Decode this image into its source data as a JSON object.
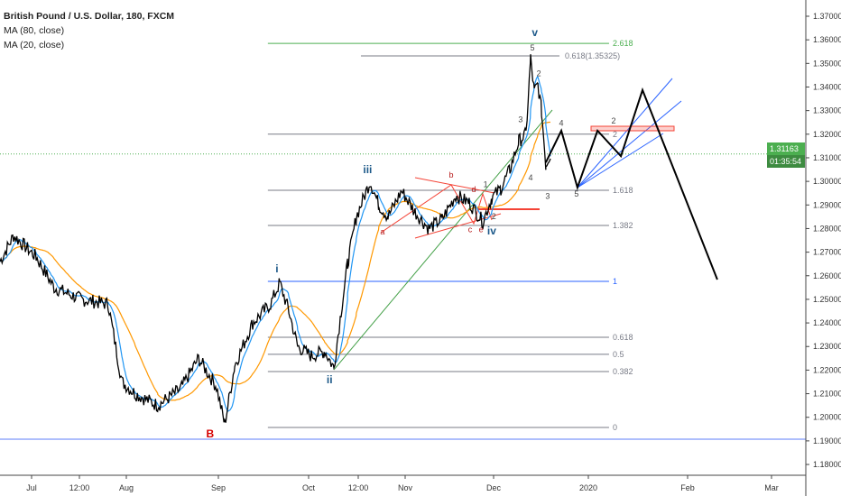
{
  "legend": {
    "title": "British Pound / U.S. Dollar, 180, FXCM",
    "ma_slow": "MA (80, close)",
    "ma_fast": "MA (20, close)"
  },
  "current": {
    "price": "1.31163",
    "countdown": "01:35:54",
    "color": "#4caf50"
  },
  "chart_data": {
    "type": "line",
    "title": "British Pound / U.S. Dollar, 180, FXCM",
    "x_unit": "days since Jul 1 2019",
    "y_ticks": [
      "1.37000",
      "1.36000",
      "1.35000",
      "1.34000",
      "1.33000",
      "1.32000",
      "1.31000",
      "1.30000",
      "1.29000",
      "1.28000",
      "1.27000",
      "1.26000",
      "1.25000",
      "1.24000",
      "1.23000",
      "1.22000",
      "1.21000",
      "1.20000",
      "1.19000",
      "1.18000"
    ],
    "ylim": [
      1.18,
      1.37
    ],
    "x_ticks": [
      "Jul",
      "12:00",
      "Aug",
      "Sep",
      "Oct",
      "12:00",
      "Nov",
      "Dec",
      "2020",
      "Feb",
      "Mar"
    ],
    "price": [
      [
        -10.4,
        1.266
      ],
      [
        -5.9,
        1.277
      ],
      [
        1.5,
        1.268
      ],
      [
        7.4,
        1.255
      ],
      [
        16.3,
        1.25
      ],
      [
        25.2,
        1.248
      ],
      [
        29.7,
        1.215
      ],
      [
        34.1,
        1.21
      ],
      [
        41.5,
        1.205
      ],
      [
        49,
        1.212
      ],
      [
        54.9,
        1.225
      ],
      [
        60.8,
        1.213
      ],
      [
        63.5,
        1.197
      ],
      [
        66.8,
        1.222
      ],
      [
        72.7,
        1.24
      ],
      [
        78.6,
        1.248
      ],
      [
        81.6,
        1.257
      ],
      [
        84.6,
        1.245
      ],
      [
        87.5,
        1.23
      ],
      [
        92,
        1.226
      ],
      [
        96.4,
        1.228
      ],
      [
        99.4,
        1.221
      ],
      [
        101.8,
        1.245
      ],
      [
        103.9,
        1.265
      ],
      [
        106.8,
        1.285
      ],
      [
        111.3,
        1.3
      ],
      [
        114.2,
        1.29
      ],
      [
        117.2,
        1.285
      ],
      [
        121.7,
        1.296
      ],
      [
        126.1,
        1.287
      ],
      [
        130.6,
        1.28
      ],
      [
        135,
        1.284
      ],
      [
        139.5,
        1.294
      ],
      [
        143.9,
        1.291
      ],
      [
        148.4,
        1.283
      ],
      [
        151.3,
        1.293
      ],
      [
        154.3,
        1.297
      ],
      [
        157.3,
        1.305
      ],
      [
        160.2,
        1.317
      ],
      [
        162.6,
        1.32
      ],
      [
        164.1,
        1.352
      ],
      [
        165.3,
        1.338
      ],
      [
        166.5,
        1.341
      ],
      [
        167.7,
        1.33
      ],
      [
        169.1,
        1.307
      ],
      [
        170.6,
        1.3116
      ]
    ],
    "projection": [
      [
        169.1,
        1.308
      ],
      [
        174.2,
        1.3215
      ],
      [
        179.5,
        1.2974
      ],
      [
        186.1,
        1.3215
      ],
      [
        193.8,
        1.3107
      ],
      [
        200.9,
        1.3387
      ],
      [
        225.5,
        1.2584
      ]
    ],
    "fib_levels": [
      {
        "label": "2.618",
        "price": 1.3585,
        "color": "#4caf50"
      },
      {
        "label": "2",
        "price": 1.32,
        "color": "#787b86"
      },
      {
        "label": "1.618",
        "price": 1.2962,
        "color": "#787b86"
      },
      {
        "label": "1.382",
        "price": 1.2813,
        "color": "#787b86"
      },
      {
        "label": "1",
        "price": 1.2576,
        "color": "#2962ff"
      },
      {
        "label": "0.618",
        "price": 1.2339,
        "color": "#787b86"
      },
      {
        "label": "0.5",
        "price": 1.2267,
        "color": "#787b86"
      },
      {
        "label": "0.382",
        "price": 1.2194,
        "color": "#787b86"
      },
      {
        "label": "0",
        "price": 1.1957,
        "color": "#787b86"
      }
    ],
    "ext_level": {
      "label": "0.618(1.35325)",
      "price": 1.3532
    },
    "support_line": {
      "price": 1.1907
    },
    "wave_labels": [
      {
        "text": "v",
        "day": 165.5,
        "price": 1.3615,
        "color": "#1e5a8a"
      },
      {
        "text": "iii",
        "day": 110.5,
        "price": 1.3035,
        "color": "#1e5a8a"
      },
      {
        "text": "i",
        "day": 80.7,
        "price": 1.2615,
        "color": "#1e5a8a"
      },
      {
        "text": "ii",
        "day": 98,
        "price": 1.2145,
        "color": "#1e5a8a"
      },
      {
        "text": "iv",
        "day": 151.3,
        "price": 1.2775,
        "color": "#1e5a8a"
      },
      {
        "text": "B",
        "day": 58.7,
        "price": 1.1915,
        "color": "#d50000"
      },
      {
        "text": "a",
        "day": 115.4,
        "price": 1.2775,
        "color": "#b71c1c"
      },
      {
        "text": "b",
        "day": 138,
        "price": 1.3015,
        "color": "#b71c1c"
      },
      {
        "text": "c",
        "day": 144.2,
        "price": 1.2785,
        "color": "#b71c1c"
      },
      {
        "text": "d",
        "day": 145.4,
        "price": 1.2955,
        "color": "#b71c1c"
      },
      {
        "text": "e",
        "day": 147.8,
        "price": 1.2785,
        "color": "#b71c1c"
      },
      {
        "text": "5",
        "day": 164.7,
        "price": 1.3555,
        "color": "#444"
      },
      {
        "text": "2",
        "day": 166.8,
        "price": 1.3445,
        "color": "#444"
      },
      {
        "text": "3",
        "day": 160.8,
        "price": 1.325,
        "color": "#444"
      },
      {
        "text": "4",
        "day": 174.2,
        "price": 1.3235,
        "color": "#444"
      },
      {
        "text": "4",
        "day": 164.1,
        "price": 1.3005,
        "color": "#444"
      },
      {
        "text": "3",
        "day": 169.7,
        "price": 1.2925,
        "color": "#444"
      },
      {
        "text": "1",
        "day": 149.3,
        "price": 1.2975,
        "color": "#444"
      },
      {
        "text": "2",
        "day": 152,
        "price": 1.284,
        "color": "#444"
      },
      {
        "text": "2",
        "day": 191.4,
        "price": 1.3195,
        "color": "#444"
      },
      {
        "text": "5",
        "day": 179.2,
        "price": 1.2935,
        "color": "#444"
      }
    ]
  }
}
